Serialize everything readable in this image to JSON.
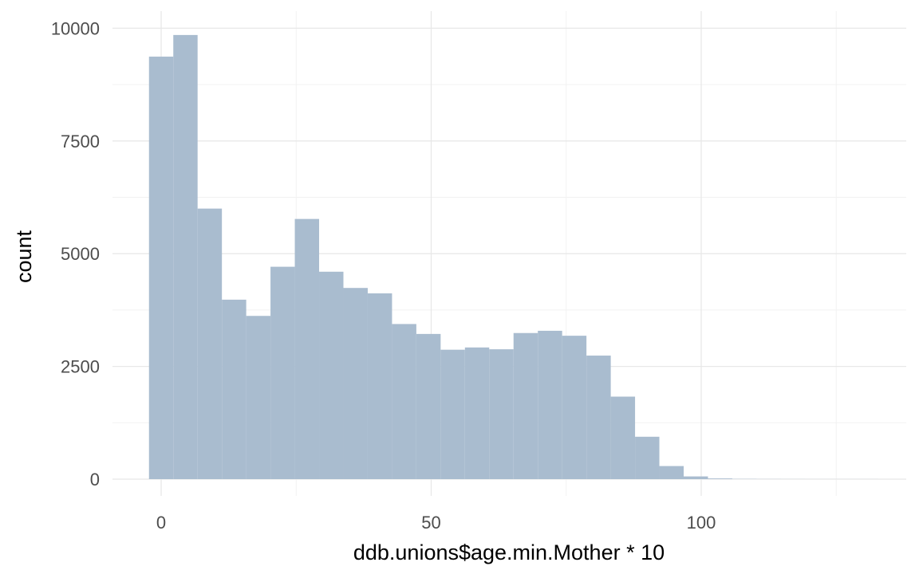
{
  "chart_data": {
    "type": "bar",
    "subtype": "histogram",
    "title": "",
    "xlabel": "ddb.unions$age.min.Mother * 10",
    "ylabel": "count",
    "xlim": [
      -4,
      138
    ],
    "ylim": [
      0,
      10000
    ],
    "x_ticks": [
      0,
      50,
      100
    ],
    "x_tick_labels": [
      "0",
      "50",
      "100"
    ],
    "y_ticks": [
      0,
      2500,
      5000,
      7500,
      10000
    ],
    "y_tick_labels": [
      "0",
      "2500",
      "5000",
      "7500",
      "10000"
    ],
    "grid": true,
    "legend": "none",
    "bin_width": 4.5,
    "bins": [
      {
        "x_start": -2.25,
        "x_end": 2.25,
        "count": 9370
      },
      {
        "x_start": 2.25,
        "x_end": 6.75,
        "count": 9850
      },
      {
        "x_start": 6.75,
        "x_end": 11.25,
        "count": 6000
      },
      {
        "x_start": 11.25,
        "x_end": 15.75,
        "count": 3980
      },
      {
        "x_start": 15.75,
        "x_end": 20.25,
        "count": 3620
      },
      {
        "x_start": 20.25,
        "x_end": 24.75,
        "count": 4710
      },
      {
        "x_start": 24.75,
        "x_end": 29.25,
        "count": 5770
      },
      {
        "x_start": 29.25,
        "x_end": 33.75,
        "count": 4600
      },
      {
        "x_start": 33.75,
        "x_end": 38.25,
        "count": 4240
      },
      {
        "x_start": 38.25,
        "x_end": 42.75,
        "count": 4120
      },
      {
        "x_start": 42.75,
        "x_end": 47.25,
        "count": 3440
      },
      {
        "x_start": 47.25,
        "x_end": 51.75,
        "count": 3220
      },
      {
        "x_start": 51.75,
        "x_end": 56.25,
        "count": 2870
      },
      {
        "x_start": 56.25,
        "x_end": 60.75,
        "count": 2920
      },
      {
        "x_start": 60.75,
        "x_end": 65.25,
        "count": 2880
      },
      {
        "x_start": 65.25,
        "x_end": 69.75,
        "count": 3240
      },
      {
        "x_start": 69.75,
        "x_end": 74.25,
        "count": 3290
      },
      {
        "x_start": 74.25,
        "x_end": 78.75,
        "count": 3180
      },
      {
        "x_start": 78.75,
        "x_end": 83.25,
        "count": 2740
      },
      {
        "x_start": 83.25,
        "x_end": 87.75,
        "count": 1830
      },
      {
        "x_start": 87.75,
        "x_end": 92.25,
        "count": 940
      },
      {
        "x_start": 92.25,
        "x_end": 96.75,
        "count": 290
      },
      {
        "x_start": 96.75,
        "x_end": 101.25,
        "count": 60
      },
      {
        "x_start": 101.25,
        "x_end": 105.75,
        "count": 15
      },
      {
        "x_start": 105.75,
        "x_end": 110.25,
        "count": 5
      },
      {
        "x_start": 110.25,
        "x_end": 114.75,
        "count": 3
      },
      {
        "x_start": 114.75,
        "x_end": 119.25,
        "count": 2
      },
      {
        "x_start": 119.25,
        "x_end": 123.75,
        "count": 1
      },
      {
        "x_start": 123.75,
        "x_end": 128.25,
        "count": 1
      },
      {
        "x_start": 128.25,
        "x_end": 132.75,
        "count": 1
      }
    ],
    "colors": {
      "bar_fill": "#a9bccf",
      "grid_major": "#e8e8e8",
      "grid_minor": "#f2f2f2",
      "tick_text": "#4d4d4d",
      "axis_title": "#000000"
    }
  }
}
